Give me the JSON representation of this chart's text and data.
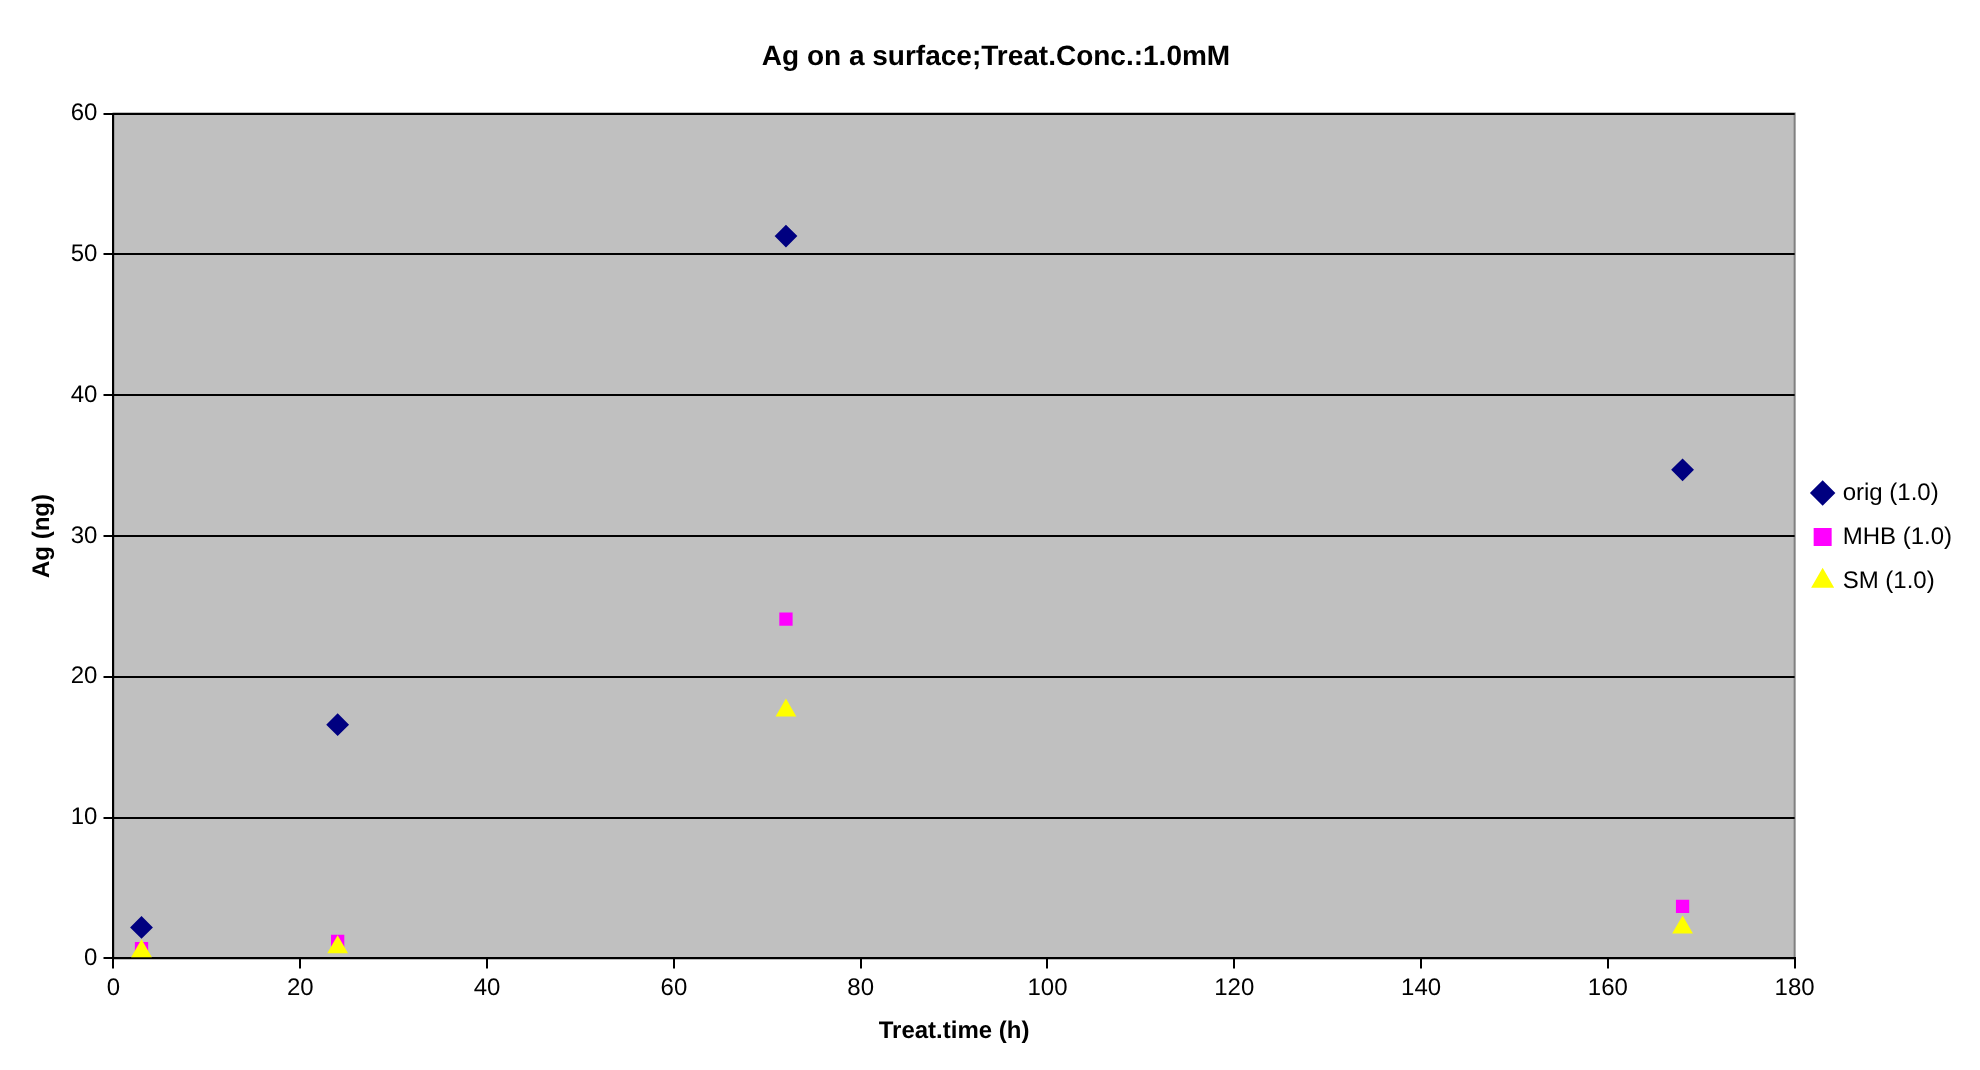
{
  "chart_data": {
    "type": "scatter",
    "title": "Ag on a surface;Treat.Conc.:1.0mM",
    "xlabel": "Treat.time (h)",
    "ylabel": "Ag (ng)",
    "x": [
      3,
      24,
      72,
      168
    ],
    "series": [
      {
        "name": "orig (1.0)",
        "color": "#000080",
        "marker": "diamond",
        "values": [
          2.2,
          16.6,
          51.3,
          34.7
        ]
      },
      {
        "name": "MHB (1.0)",
        "color": "#ff00ff",
        "marker": "square",
        "values": [
          0.7,
          1.2,
          24.1,
          3.7
        ]
      },
      {
        "name": "SM (1.0)",
        "color": "#ffff00",
        "marker": "triangle",
        "values": [
          0.5,
          0.8,
          17.6,
          2.2
        ]
      }
    ],
    "xlim": [
      0,
      180
    ],
    "xticks": [
      0,
      20,
      40,
      60,
      80,
      100,
      120,
      140,
      160,
      180
    ],
    "ylim": [
      0,
      60
    ],
    "yticks": [
      0,
      10,
      20,
      30,
      40,
      50,
      60
    ],
    "grid": "y",
    "legend": "right"
  }
}
